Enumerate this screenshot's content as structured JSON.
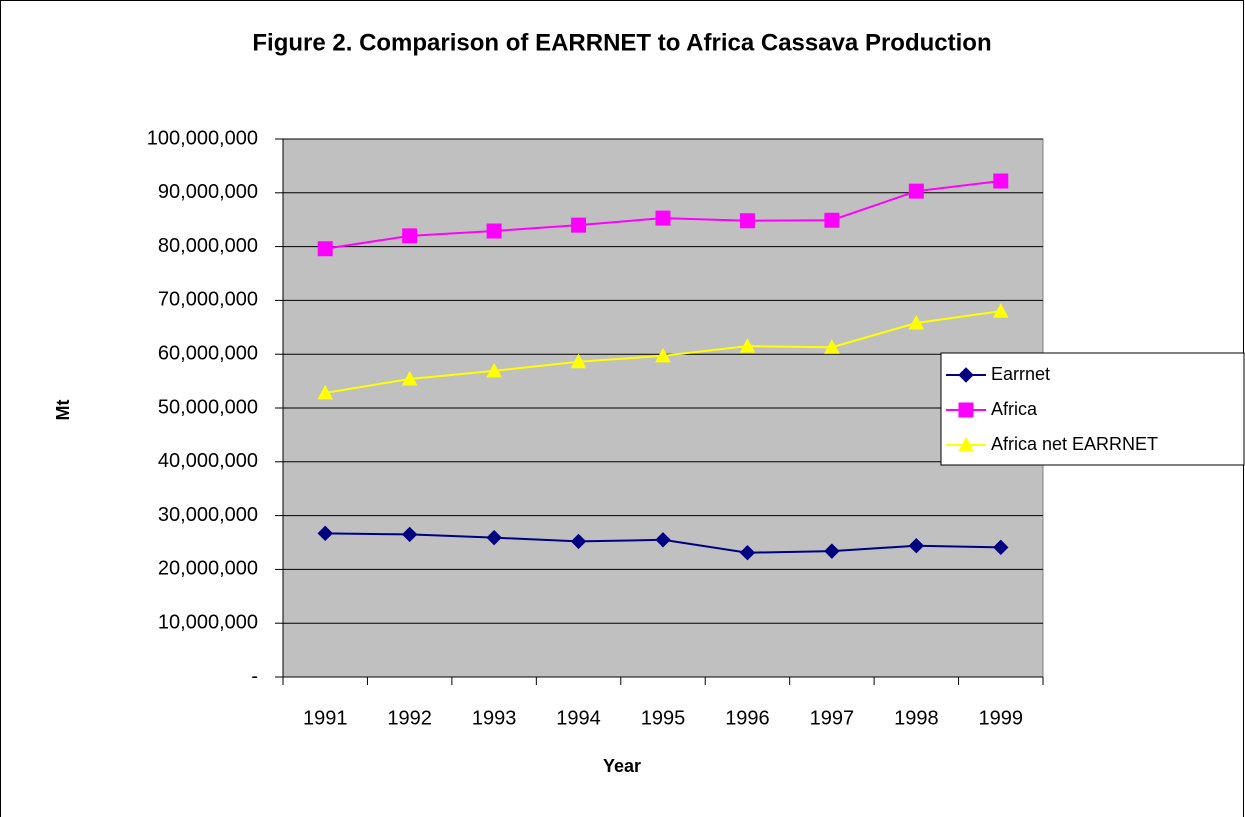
{
  "chart_data": {
    "type": "line",
    "title": "Figure 2. Comparison of EARRNET to Africa Cassava Production",
    "x_label": "Year",
    "y_label": "Mt",
    "categories": [
      "1991",
      "1992",
      "1993",
      "1994",
      "1995",
      "1996",
      "1997",
      "1998",
      "1999"
    ],
    "series": [
      {
        "name": "Earrnet",
        "color": "#000080",
        "marker": "diamond",
        "values": [
          26700000,
          26500000,
          25900000,
          25200000,
          25500000,
          23100000,
          23400000,
          24400000,
          24100000
        ]
      },
      {
        "name": "Africa",
        "color": "#ff00ff",
        "marker": "square",
        "values": [
          79600000,
          82000000,
          82900000,
          84000000,
          85300000,
          84800000,
          84900000,
          90300000,
          92200000
        ]
      },
      {
        "name": "Africa net EARRNET",
        "color": "#ffff00",
        "marker": "triangle",
        "values": [
          52800000,
          55400000,
          56900000,
          58600000,
          59700000,
          61500000,
          61300000,
          65800000,
          68000000
        ]
      }
    ],
    "ylim": [
      0,
      100000000
    ],
    "yticks": [
      {
        "value": 0,
        "label": "-"
      },
      {
        "value": 10000000,
        "label": "10,000,000"
      },
      {
        "value": 20000000,
        "label": "20,000,000"
      },
      {
        "value": 30000000,
        "label": "30,000,000"
      },
      {
        "value": 40000000,
        "label": "40,000,000"
      },
      {
        "value": 50000000,
        "label": "50,000,000"
      },
      {
        "value": 60000000,
        "label": "60,000,000"
      },
      {
        "value": 70000000,
        "label": "70,000,000"
      },
      {
        "value": 80000000,
        "label": "80,000,000"
      },
      {
        "value": 90000000,
        "label": "90,000,000"
      },
      {
        "value": 100000000,
        "label": "100,000,000"
      }
    ],
    "grid": true,
    "legend": "right",
    "plot_background": "#c0c0c0"
  }
}
